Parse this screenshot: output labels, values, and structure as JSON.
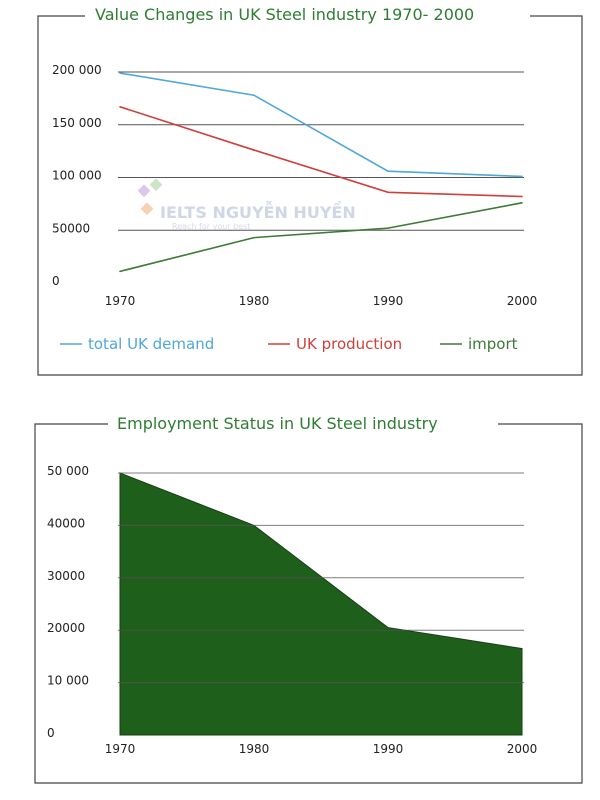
{
  "chart_data": [
    {
      "type": "line",
      "title": "Value Changes in UK Steel industry 1970- 2000",
      "categories": [
        "1970",
        "1980",
        "1990",
        "2000"
      ],
      "y_ticks": [
        "0",
        "50000",
        "100 000",
        "150 000",
        "200 000"
      ],
      "ylim": [
        0,
        200000
      ],
      "grid": true,
      "legend_position": "bottom",
      "series": [
        {
          "name": "total UK demand",
          "color": "#4fa8d8",
          "values": [
            199000,
            178000,
            106000,
            101000
          ]
        },
        {
          "name": "UK production",
          "color": "#d0403a",
          "values": [
            167000,
            126000,
            86000,
            82000
          ]
        },
        {
          "name": "import",
          "color": "#3c7a36",
          "values": [
            11000,
            43000,
            52000,
            76000
          ]
        }
      ]
    },
    {
      "type": "area",
      "title": "Employment Status in UK Steel industry",
      "categories": [
        "1970",
        "1980",
        "1990",
        "2000"
      ],
      "y_ticks": [
        "0",
        "10 000",
        "20000",
        "30000",
        "40000",
        "50 000"
      ],
      "ylim": [
        0,
        50000
      ],
      "grid": true,
      "series": [
        {
          "color": "#1f5f1c",
          "values": [
            50000,
            40000,
            20500,
            16500
          ]
        }
      ]
    }
  ],
  "watermark": {
    "brand": "IELTS NGUYỄN HUYỀN",
    "tagline": "Reach for your best"
  }
}
